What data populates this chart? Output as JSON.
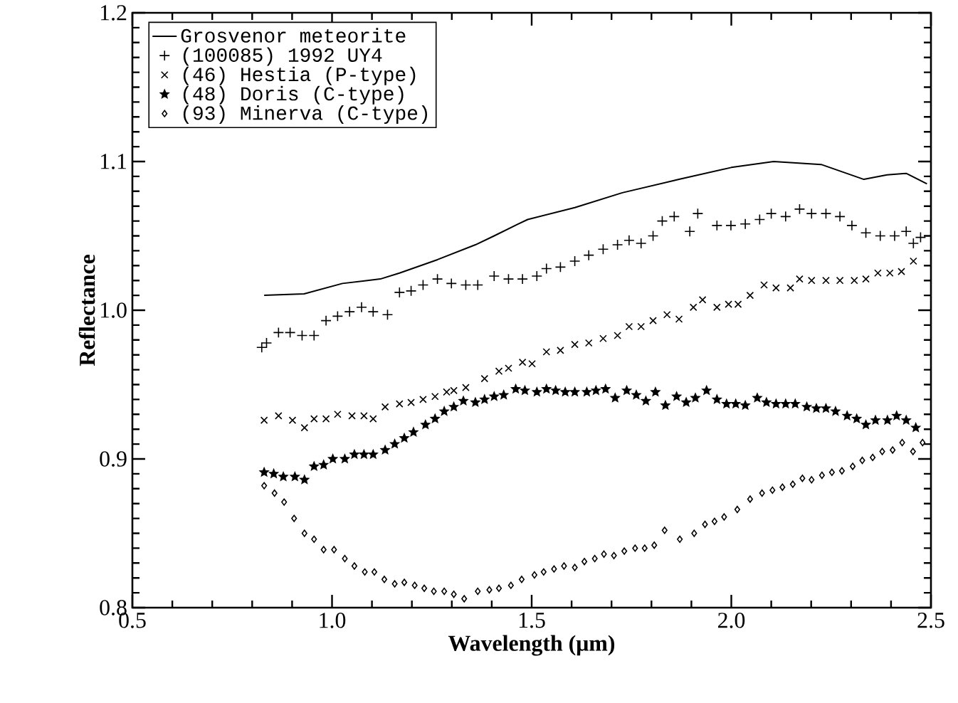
{
  "chart_data": {
    "type": "scatter",
    "xlabel": "Wavelength (μm)",
    "ylabel": "Reflectance",
    "xlim": [
      0.5,
      2.5
    ],
    "ylim": [
      0.8,
      1.2
    ],
    "xticks": [
      0.5,
      {
        "value": 1.0,
        "label": "1.0"
      },
      1.5,
      {
        "value": 2.0,
        "label": "2.0"
      },
      2.5
    ],
    "yticks": [
      0.8,
      0.9,
      {
        "value": 1.0,
        "label": "1.0"
      },
      1.1,
      1.2
    ],
    "legend": "top left",
    "series": [
      {
        "name": "Grosvenor meteorite",
        "type": "line",
        "color": "#000000",
        "marker": "none",
        "x": [
          0.83,
          0.93,
          1.026,
          1.121,
          1.169,
          1.264,
          1.359,
          1.406,
          1.466,
          1.49,
          1.608,
          1.727,
          1.869,
          2.0,
          2.106,
          2.225,
          2.332,
          2.39,
          2.438,
          2.49
        ],
        "values": [
          1.01,
          1.011,
          1.018,
          1.021,
          1.025,
          1.034,
          1.044,
          1.05,
          1.058,
          1.061,
          1.069,
          1.079,
          1.088,
          1.096,
          1.1,
          1.098,
          1.088,
          1.091,
          1.092,
          1.085
        ]
      },
      {
        "name": "(100085) 1992 UY4",
        "color": "#000000",
        "marker": "plus",
        "x": [
          0.824,
          0.836,
          0.866,
          0.895,
          0.925,
          0.955,
          0.985,
          1.014,
          1.044,
          1.074,
          1.103,
          1.139,
          1.169,
          1.198,
          1.228,
          1.264,
          1.299,
          1.335,
          1.365,
          1.406,
          1.442,
          1.477,
          1.513,
          1.537,
          1.572,
          1.608,
          1.643,
          1.679,
          1.715,
          1.744,
          1.774,
          1.804,
          1.827,
          1.857,
          1.896,
          1.916,
          1.964,
          1.999,
          2.035,
          2.071,
          2.1,
          2.136,
          2.171,
          2.201,
          2.237,
          2.272,
          2.302,
          2.337,
          2.373,
          2.409,
          2.438,
          2.456,
          2.474
        ],
        "values": [
          0.975,
          0.978,
          0.985,
          0.985,
          0.983,
          0.983,
          0.993,
          0.996,
          0.999,
          1.002,
          0.999,
          0.997,
          1.012,
          1.013,
          1.017,
          1.021,
          1.018,
          1.017,
          1.017,
          1.023,
          1.021,
          1.021,
          1.023,
          1.028,
          1.029,
          1.033,
          1.037,
          1.041,
          1.044,
          1.047,
          1.045,
          1.05,
          1.06,
          1.063,
          1.053,
          1.065,
          1.057,
          1.057,
          1.058,
          1.061,
          1.065,
          1.063,
          1.068,
          1.065,
          1.065,
          1.063,
          1.057,
          1.052,
          1.05,
          1.05,
          1.053,
          1.045,
          1.049
        ]
      },
      {
        "name": "(46) Hestia (P-type)",
        "color": "#000000",
        "marker": "cross",
        "x": [
          0.83,
          0.866,
          0.901,
          0.931,
          0.955,
          0.985,
          1.014,
          1.05,
          1.08,
          1.103,
          1.133,
          1.169,
          1.198,
          1.228,
          1.258,
          1.287,
          1.305,
          1.335,
          1.382,
          1.418,
          1.442,
          1.477,
          1.501,
          1.537,
          1.572,
          1.608,
          1.643,
          1.679,
          1.715,
          1.744,
          1.774,
          1.804,
          1.839,
          1.869,
          1.905,
          1.928,
          1.964,
          1.993,
          2.017,
          2.047,
          2.082,
          2.112,
          2.148,
          2.171,
          2.201,
          2.237,
          2.272,
          2.308,
          2.337,
          2.367,
          2.397,
          2.426,
          2.456
        ],
        "values": [
          0.926,
          0.929,
          0.926,
          0.921,
          0.927,
          0.927,
          0.93,
          0.929,
          0.929,
          0.927,
          0.935,
          0.937,
          0.938,
          0.94,
          0.942,
          0.945,
          0.946,
          0.948,
          0.954,
          0.959,
          0.961,
          0.965,
          0.964,
          0.972,
          0.973,
          0.977,
          0.978,
          0.981,
          0.983,
          0.989,
          0.989,
          0.993,
          0.997,
          0.994,
          1.002,
          1.007,
          1.002,
          1.004,
          1.004,
          1.01,
          1.017,
          1.015,
          1.015,
          1.021,
          1.02,
          1.02,
          1.02,
          1.02,
          1.021,
          1.025,
          1.025,
          1.026,
          1.033
        ]
      },
      {
        "name": "(48) Doris (C-type)",
        "color": "#000000",
        "marker": "star",
        "x": [
          0.83,
          0.854,
          0.878,
          0.907,
          0.931,
          0.955,
          0.979,
          1.002,
          1.032,
          1.056,
          1.08,
          1.103,
          1.133,
          1.157,
          1.181,
          1.204,
          1.234,
          1.258,
          1.281,
          1.305,
          1.329,
          1.359,
          1.382,
          1.406,
          1.43,
          1.46,
          1.483,
          1.513,
          1.537,
          1.56,
          1.584,
          1.608,
          1.638,
          1.661,
          1.685,
          1.709,
          1.738,
          1.762,
          1.786,
          1.81,
          1.835,
          1.863,
          1.887,
          1.91,
          1.938,
          1.964,
          1.988,
          2.011,
          2.035,
          2.065,
          2.088,
          2.112,
          2.136,
          2.16,
          2.189,
          2.213,
          2.237,
          2.261,
          2.29,
          2.314,
          2.337,
          2.361,
          2.391,
          2.414,
          2.438,
          2.462
        ],
        "values": [
          0.891,
          0.89,
          0.888,
          0.888,
          0.886,
          0.895,
          0.896,
          0.9,
          0.9,
          0.903,
          0.903,
          0.903,
          0.906,
          0.91,
          0.914,
          0.918,
          0.923,
          0.927,
          0.932,
          0.935,
          0.939,
          0.938,
          0.94,
          0.942,
          0.943,
          0.947,
          0.946,
          0.945,
          0.947,
          0.946,
          0.945,
          0.945,
          0.945,
          0.946,
          0.947,
          0.941,
          0.946,
          0.943,
          0.939,
          0.945,
          0.936,
          0.942,
          0.938,
          0.941,
          0.946,
          0.94,
          0.937,
          0.937,
          0.936,
          0.941,
          0.938,
          0.937,
          0.937,
          0.937,
          0.935,
          0.934,
          0.934,
          0.932,
          0.929,
          0.927,
          0.923,
          0.926,
          0.926,
          0.929,
          0.926,
          0.921
        ]
      },
      {
        "name": "(93) Minerva (C-type)",
        "color": "#000000",
        "marker": "diamond",
        "x": [
          0.83,
          0.856,
          0.88,
          0.905,
          0.931,
          0.955,
          0.979,
          1.005,
          1.032,
          1.056,
          1.082,
          1.106,
          1.131,
          1.157,
          1.181,
          1.207,
          1.231,
          1.255,
          1.281,
          1.305,
          1.331,
          1.365,
          1.394,
          1.418,
          1.448,
          1.475,
          1.507,
          1.53,
          1.556,
          1.581,
          1.608,
          1.632,
          1.658,
          1.681,
          1.706,
          1.732,
          1.759,
          1.783,
          1.807,
          1.833,
          1.871,
          1.907,
          1.934,
          1.958,
          1.982,
          2.015,
          2.047,
          2.077,
          2.103,
          2.128,
          2.154,
          2.178,
          2.201,
          2.227,
          2.252,
          2.277,
          2.304,
          2.328,
          2.354,
          2.378,
          2.404,
          2.428,
          2.455,
          2.479
        ],
        "values": [
          0.882,
          0.877,
          0.871,
          0.86,
          0.85,
          0.846,
          0.839,
          0.839,
          0.833,
          0.828,
          0.824,
          0.824,
          0.819,
          0.816,
          0.817,
          0.815,
          0.813,
          0.811,
          0.811,
          0.809,
          0.806,
          0.811,
          0.812,
          0.813,
          0.815,
          0.819,
          0.822,
          0.824,
          0.826,
          0.828,
          0.827,
          0.831,
          0.833,
          0.836,
          0.835,
          0.838,
          0.84,
          0.84,
          0.842,
          0.852,
          0.846,
          0.85,
          0.856,
          0.858,
          0.861,
          0.866,
          0.873,
          0.877,
          0.879,
          0.881,
          0.883,
          0.887,
          0.886,
          0.889,
          0.891,
          0.892,
          0.895,
          0.899,
          0.901,
          0.905,
          0.906,
          0.911,
          0.905,
          0.911
        ]
      }
    ]
  }
}
